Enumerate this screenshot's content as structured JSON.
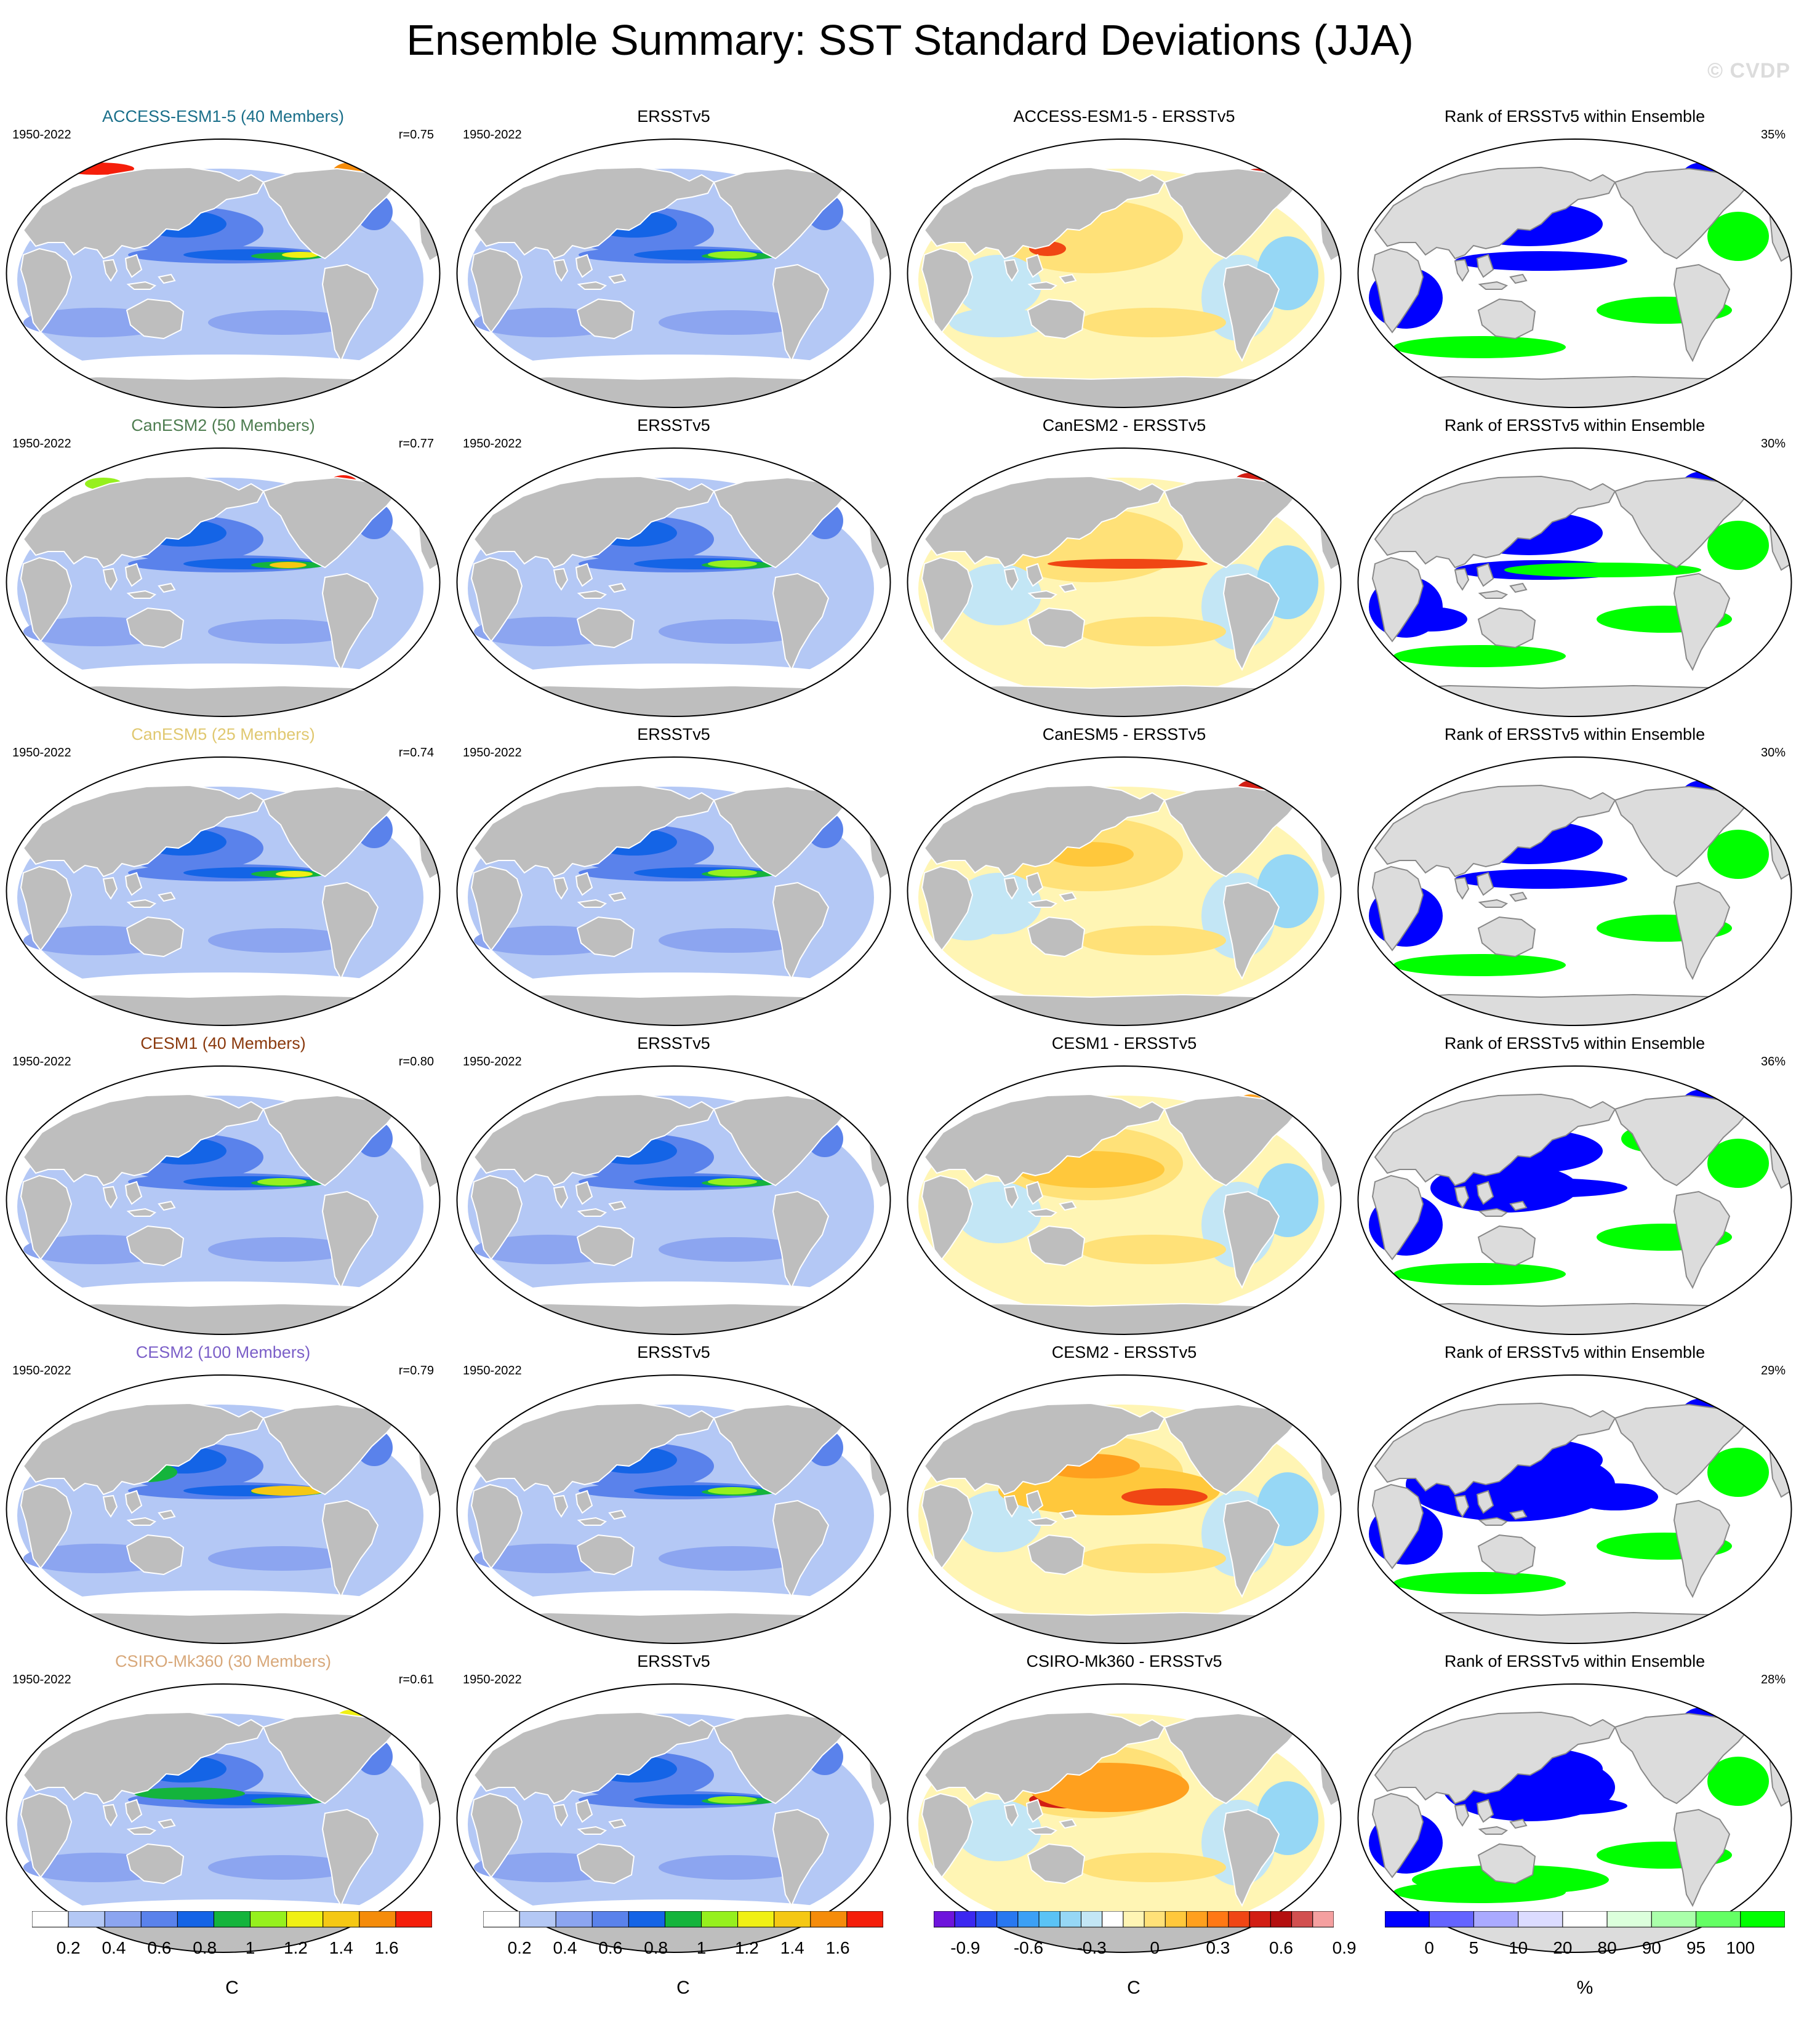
{
  "title": "Ensemble Summary: SST Standard Deviations (JJA)",
  "watermark": "© CVDP",
  "period": "1950-2022",
  "obs_name": "ERSSTv5",
  "rank_title": "Rank of ERSSTv5 within Ensemble",
  "rows": [
    {
      "model_title": "ACCESS-ESM1-5 (40 Members)",
      "title_color": "#1a6f8a",
      "r": "r=0.75",
      "diff_title": "ACCESS-ESM1-5 - ERSSTv5",
      "rank_pct": "35%"
    },
    {
      "model_title": "CanESM2 (50 Members)",
      "title_color": "#4e7d50",
      "r": "r=0.77",
      "diff_title": "CanESM2 - ERSSTv5",
      "rank_pct": "30%"
    },
    {
      "model_title": "CanESM5 (25 Members)",
      "title_color": "#e0c870",
      "r": "r=0.74",
      "diff_title": "CanESM5 - ERSSTv5",
      "rank_pct": "30%"
    },
    {
      "model_title": "CESM1 (40 Members)",
      "title_color": "#8b3a0e",
      "r": "r=0.80",
      "diff_title": "CESM1 - ERSSTv5",
      "rank_pct": "36%"
    },
    {
      "model_title": "CESM2 (100 Members)",
      "title_color": "#7b5fc8",
      "r": "r=0.79",
      "diff_title": "CESM2 - ERSSTv5",
      "rank_pct": "29%"
    },
    {
      "model_title": "CSIRO-Mk360 (30 Members)",
      "title_color": "#d8a87a",
      "r": "r=0.61",
      "diff_title": "CSIRO-Mk360 - ERSSTv5",
      "rank_pct": "28%"
    }
  ],
  "colorbars": [
    {
      "colors": [
        "#ffffff",
        "#b4c8f5",
        "#8ca5f0",
        "#5a82eb",
        "#1464e6",
        "#14b43c",
        "#96f01e",
        "#f0f014",
        "#f5c814",
        "#f58c0a",
        "#f51e0a"
      ],
      "labels": [
        "0.2",
        "0.4",
        "0.6",
        "0.8",
        "1",
        "1.2",
        "1.4",
        "1.6"
      ],
      "unit": "C"
    },
    {
      "colors": [
        "#ffffff",
        "#b4c8f5",
        "#8ca5f0",
        "#5a82eb",
        "#1464e6",
        "#14b43c",
        "#96f01e",
        "#f0f014",
        "#f5c814",
        "#f58c0a",
        "#f51e0a"
      ],
      "labels": [
        "0.2",
        "0.4",
        "0.6",
        "0.8",
        "1",
        "1.2",
        "1.4",
        "1.6"
      ],
      "unit": "C"
    },
    {
      "colors": [
        "#6e14dc",
        "#3c28f0",
        "#2850f0",
        "#2878f0",
        "#3ca0f5",
        "#5ac3f5",
        "#96d7f5",
        "#c3e6f5",
        "#ffffff",
        "#fff5b4",
        "#ffe178",
        "#ffc83c",
        "#ffa01e",
        "#ff7814",
        "#f04614",
        "#d21e14",
        "#b40f0f",
        "#d25050",
        "#f5a0a0"
      ],
      "labels": [
        "-0.9",
        "-0.6",
        "-0.3",
        "0",
        "0.3",
        "0.6",
        "0.9"
      ],
      "unit": "C"
    },
    {
      "colors": [
        "#0000ff",
        "#6464ff",
        "#aaaaff",
        "#dcdcff",
        "#ffffff",
        "#dcffdc",
        "#aaffaa",
        "#64ff64",
        "#00ff00"
      ],
      "labels": [
        "0",
        "5",
        "10",
        "20",
        "80",
        "90",
        "95",
        "100"
      ],
      "unit": "%"
    }
  ]
}
